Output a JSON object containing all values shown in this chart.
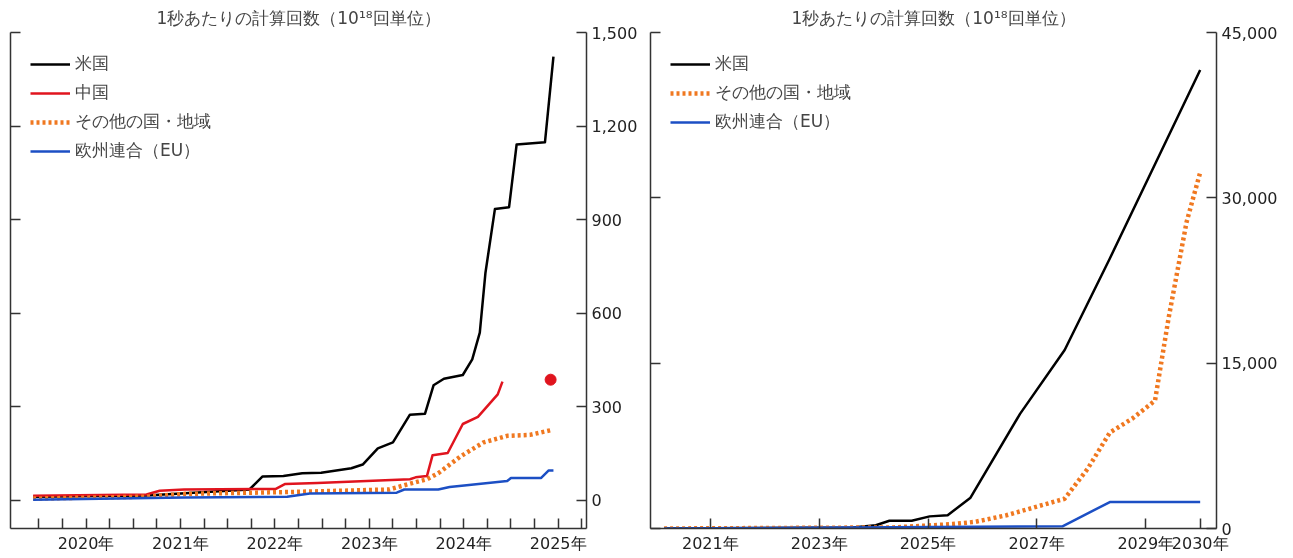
{
  "chart_data": [
    {
      "type": "line",
      "title": "1秒あたりの計算回数（10¹⁸回単位）",
      "legend": "top left",
      "xlim": [
        2019.7,
        2025.8
      ],
      "xticks": [
        {
          "value": 2020,
          "label": null
        },
        {
          "value": 2020.25,
          "label": null
        },
        {
          "value": 2020.5,
          "label": "2020年"
        },
        {
          "value": 2020.75,
          "label": null
        },
        {
          "value": 2021,
          "label": null
        },
        {
          "value": 2021.25,
          "label": null
        },
        {
          "value": 2021.5,
          "label": "2021年"
        },
        {
          "value": 2021.75,
          "label": null
        },
        {
          "value": 2022,
          "label": null
        },
        {
          "value": 2022.25,
          "label": null
        },
        {
          "value": 2022.5,
          "label": "2022年"
        },
        {
          "value": 2022.75,
          "label": null
        },
        {
          "value": 2023,
          "label": null
        },
        {
          "value": 2023.25,
          "label": null
        },
        {
          "value": 2023.5,
          "label": "2023年"
        },
        {
          "value": 2023.75,
          "label": null
        },
        {
          "value": 2024,
          "label": null
        },
        {
          "value": 2024.25,
          "label": null
        },
        {
          "value": 2024.5,
          "label": "2024年"
        },
        {
          "value": 2024.75,
          "label": null
        },
        {
          "value": 2025,
          "label": null
        },
        {
          "value": 2025.25,
          "label": null
        },
        {
          "value": 2025.5,
          "label": "2025年"
        },
        {
          "value": 2025.75,
          "label": null
        }
      ],
      "ylim": [
        -90,
        1500
      ],
      "yticks": [
        0,
        300,
        600,
        900,
        {
          "value": 1200,
          "label": "1,200"
        },
        {
          "value": 1500,
          "label": "1,500"
        }
      ],
      "series": [
        {
          "name": "米国",
          "color": "#000000",
          "line_style": "solid",
          "x": [
            2019.94,
            2021.14,
            2022.23,
            2022.37,
            2022.59,
            2022.79,
            2022.99,
            2023.31,
            2023.43,
            2023.59,
            2023.75,
            2023.93,
            2024.09,
            2024.18,
            2024.29,
            2024.49,
            2024.59,
            2024.67,
            2024.73,
            2024.83,
            2024.98,
            2025.06,
            2025.36,
            2025.45
          ],
          "values": [
            12,
            16,
            35,
            77,
            78,
            87,
            89,
            103,
            115,
            167,
            186,
            275,
            278,
            369,
            390,
            402,
            452,
            538,
            730,
            934,
            940,
            1141,
            1148,
            1423
          ]
        },
        {
          "name": "中国",
          "color": "#e0141e",
          "line_style": "solid",
          "x": [
            2019.94,
            2021.14,
            2021.28,
            2021.54,
            2022.51,
            2022.61,
            2022.95,
            2023.93,
            2023.99,
            2024.11,
            2024.17,
            2024.33,
            2024.49,
            2024.65,
            2024.86,
            2024.91
          ],
          "values": [
            15,
            19,
            31,
            35,
            37,
            53,
            56,
            68,
            74,
            78,
            145,
            152,
            245,
            268,
            340,
            381
          ]
        },
        {
          "name": "その他の国・地域",
          "color": "#f07820",
          "line_style": "dotted",
          "x": [
            2019.94,
            2021.14,
            2021.54,
            2022.67,
            2023.71,
            2023.91,
            2024.11,
            2024.23,
            2024.47,
            2024.71,
            2024.96,
            2025.2,
            2025.42
          ],
          "values": [
            6,
            12,
            21,
            27,
            35,
            52,
            68,
            87,
            142,
            186,
            207,
            210,
            225
          ]
        },
        {
          "name": "欧州連合（EU）",
          "color": "#1c4fc4",
          "line_style": "solid",
          "x": [
            2019.94,
            2021.54,
            2022.63,
            2022.87,
            2023.79,
            2023.87,
            2024.23,
            2024.35,
            2024.53,
            2024.96,
            2025.0,
            2025.32,
            2025.4,
            2025.45
          ],
          "values": [
            2,
            9,
            12,
            22,
            25,
            35,
            35,
            43,
            49,
            62,
            72,
            72,
            96,
            96
          ]
        },
        {
          "type": "scatter",
          "marker": "circle",
          "color": "#e0141e",
          "x": [
            2025.42
          ],
          "values": [
            387
          ]
        }
      ]
    },
    {
      "type": "line",
      "title": "1秒あたりの計算回数（10¹⁸回単位）",
      "legend": "top left",
      "xlim": [
        2019.9,
        2030.3
      ],
      "xticks": [
        {
          "value": 2021,
          "label": "2021年"
        },
        {
          "value": 2023,
          "label": "2023年"
        },
        {
          "value": 2025,
          "label": "2025年"
        },
        {
          "value": 2027,
          "label": "2027年"
        },
        {
          "value": 2029,
          "label": "2029年"
        },
        {
          "value": 2030,
          "label": "2030年"
        }
      ],
      "ylim": [
        0,
        45000
      ],
      "yticks": [
        0,
        {
          "value": 15000,
          "label": "15,000"
        },
        {
          "value": 30000,
          "label": "30,000"
        },
        {
          "value": 45000,
          "label": "45,000"
        }
      ],
      "series": [
        {
          "name": "米国",
          "color": "#000000",
          "line_style": "solid",
          "x": [
            2020.15,
            2023.62,
            2024.04,
            2024.29,
            2024.7,
            2025.03,
            2025.36,
            2025.78,
            2026.69,
            2027.51,
            2028.34,
            2030.0
          ],
          "values": [
            0,
            100,
            300,
            700,
            700,
            1100,
            1200,
            2800,
            10400,
            16200,
            24500,
            41600
          ]
        },
        {
          "name": "その他の国・地域",
          "color": "#f07820",
          "line_style": "dotted",
          "x": [
            2020.15,
            2024.37,
            2025.45,
            2025.86,
            2026.44,
            2026.94,
            2027.51,
            2027.93,
            2028.34,
            2028.76,
            2029.17,
            2029.42,
            2029.75,
            2030.0
          ],
          "values": [
            0,
            100,
            400,
            600,
            1200,
            1900,
            2700,
            5400,
            8700,
            10000,
            11600,
            19100,
            27800,
            32300
          ]
        },
        {
          "name": "欧州連合（EU）",
          "color": "#1c4fc4",
          "line_style": "solid",
          "x": [
            2020.15,
            2027.47,
            2028.34,
            2030.0
          ],
          "values": [
            0,
            200,
            2400,
            2400
          ]
        }
      ]
    }
  ]
}
